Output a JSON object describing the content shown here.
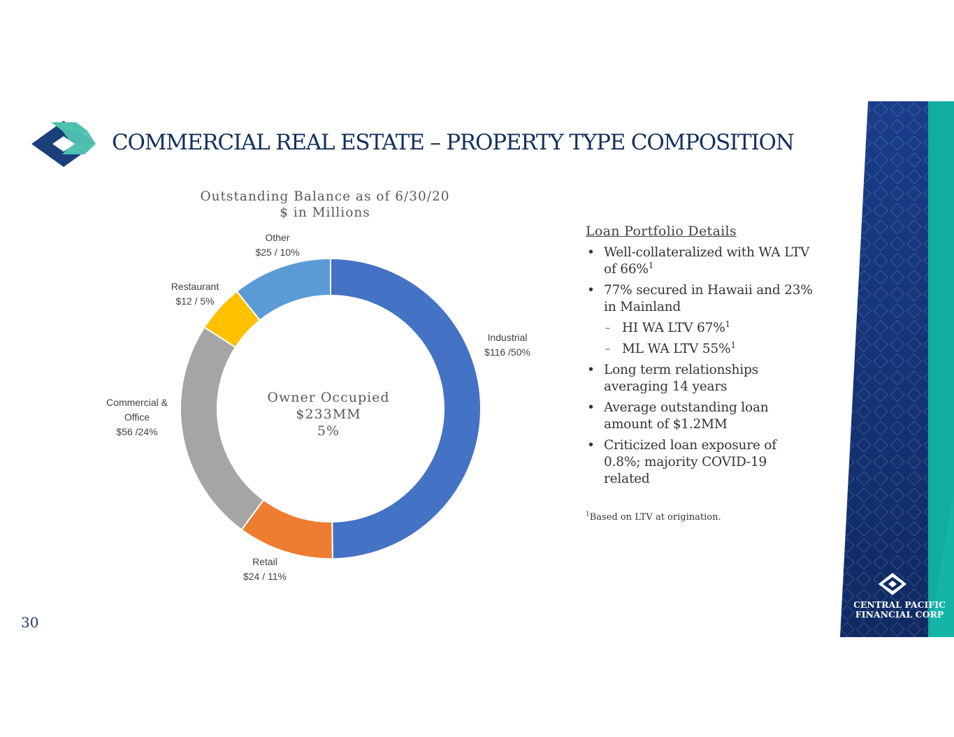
{
  "slide": {
    "title": "COMMERCIAL REAL ESTATE – PROPERTY TYPE COMPOSITION",
    "page_number": "30",
    "logo_icon": "central-pacific-diamond-logo-icon",
    "brand_lines": [
      "CENTRAL PACIFIC",
      "FINANCIAL CORP"
    ]
  },
  "chart_data": {
    "type": "pie",
    "title_lines": [
      "Outstanding Balance as of 6/30/20",
      "$ in Millions"
    ],
    "center_lines": [
      "Owner Occupied",
      "$233MM",
      "5%"
    ],
    "slices": [
      {
        "name": "Industrial",
        "value": 116,
        "label_lines": [
          "Industrial",
          "$116 /50%"
        ],
        "color": "#4472c4"
      },
      {
        "name": "Retail",
        "value": 24,
        "label_lines": [
          "Retail",
          "$24 / 11%"
        ],
        "color": "#ed7d31"
      },
      {
        "name": "Commercial & Office",
        "value": 56,
        "label_lines": [
          "Commercial &",
          "Office",
          "$56 /24%"
        ],
        "color": "#a5a5a5"
      },
      {
        "name": "Restaurant",
        "value": 12,
        "label_lines": [
          "Restaurant",
          "$12 / 5%"
        ],
        "color": "#ffc000"
      },
      {
        "name": "Other",
        "value": 25,
        "label_lines": [
          "Other",
          "$25 / 10%"
        ],
        "color": "#5b9bd5"
      }
    ]
  },
  "details": {
    "heading": "Loan Portfolio Details",
    "bullets": [
      {
        "text": "Well-collateralized with WA LTV of 66%",
        "sup": "1"
      },
      {
        "text": "77% secured in Hawaii and 23% in Mainland",
        "sup": ""
      },
      {
        "text": "HI WA LTV 67%",
        "sup": "1",
        "sub": true
      },
      {
        "text": "ML WA LTV 55%",
        "sup": "1",
        "sub": true
      },
      {
        "text": "Long term relationships averaging 14 years",
        "sup": ""
      },
      {
        "text": "Average outstanding loan amount of $1.2MM",
        "sup": ""
      },
      {
        "text": "Criticized loan exposure of 0.8%; majority COVID-19 related",
        "sup": ""
      }
    ],
    "footnote_mark": "1",
    "footnote": "Based on LTV at origination."
  }
}
